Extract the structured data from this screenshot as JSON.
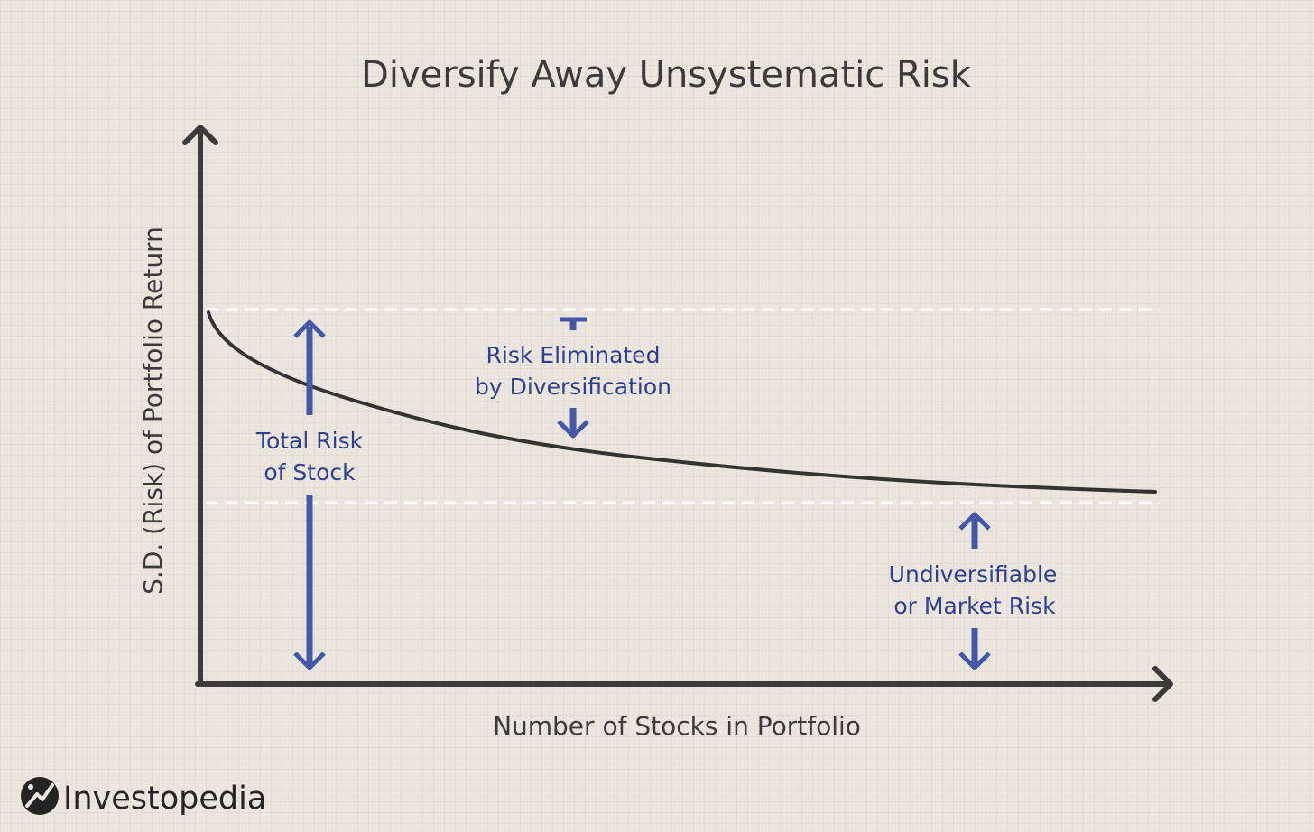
{
  "title": "Diversify Away Unsystematic Risk",
  "axes": {
    "y_label": "S.D. (Risk) of Portfolio Return",
    "x_label": "Number of Stocks in Portfolio"
  },
  "annotations": {
    "total_risk": [
      "Total Risk",
      "of Stock"
    ],
    "risk_eliminated": [
      "Risk Eliminated",
      "by Diversification"
    ],
    "market_risk": [
      "Undiversifiable",
      "or Market Risk"
    ]
  },
  "brand": {
    "name": "Investopedia"
  },
  "colors": {
    "axis": "#3b3b3b",
    "curve": "#333333",
    "annotation": "#2f3f8f",
    "arrow": "#4457a8",
    "dashed_line": "#ffffff",
    "background": "#ebe6dd"
  }
}
